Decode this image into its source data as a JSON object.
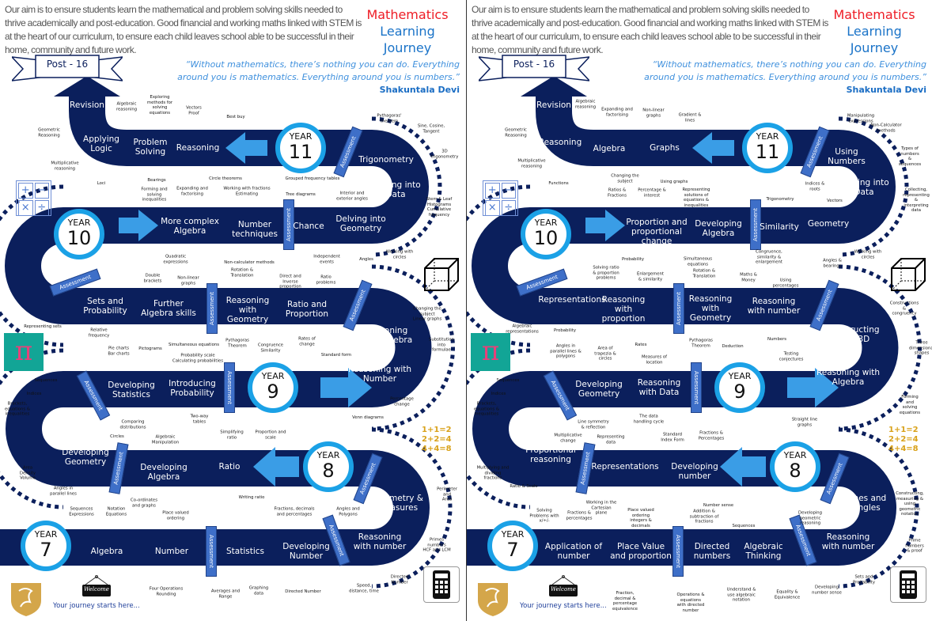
{
  "intro_text": "Our aim is to ensure students learn the mathematical and problem solving skills needed to thrive academically and post-education.  Good financial and working maths linked with STEM is at the heart of our curriculum, to ensure each child leaves school able to be successful in their home, community and future work.",
  "title": {
    "line1": "Mathematics",
    "line2": "Learning",
    "line3": "Journey"
  },
  "quote": {
    "text": "“Without mathematics, there’s nothing you can do. Everything around you is mathematics. Everything around you is numbers.”",
    "author": "Shakuntala Devi"
  },
  "banner": "Post - 16",
  "year_label": "YEAR",
  "years": [
    "11",
    "10",
    "9",
    "8",
    "7"
  ],
  "assessment_label": "Assessment",
  "ops_symbols": [
    "+",
    "−",
    "×",
    "÷"
  ],
  "pi_symbol": "π",
  "sums": [
    "1+1=2",
    "2+2=4",
    "4+4=8"
  ],
  "welcome_sign": "Welcome",
  "journey_start": "Your journey starts here...",
  "colors": {
    "road": "#0b1f5c",
    "accent": "#1ba1e6",
    "arrow": "#3a9de6",
    "assessment": "#3e6fc8",
    "title_red": "#ee1c25",
    "title_blue": "#1a73c8",
    "pi_bg": "#12a596",
    "shield": "#d4a64a"
  },
  "icons": [
    "post-16-banner",
    "operations-icon",
    "cube-icon",
    "pi-icon",
    "sums-icon",
    "calculator-icon",
    "school-shield-logo",
    "welcome-sign-icon"
  ],
  "panels": [
    {
      "topics": [
        "Revision",
        "Applying\nLogic",
        "Problem\nSolving",
        "Reasoning",
        "Trigonometry",
        "Delving into\nData",
        "More complex\nAlgebra",
        "Number\ntechniques",
        "Chance",
        "Delving into\nGeometry",
        "Sets and\nProbability",
        "Further\nAlgebra skills",
        "Reasoning\nwith\nGeometry",
        "Ratio and\nProportion",
        "Reasoning\nwith Algebra",
        "Reasoning with\nNumber",
        "Developing\nStatistics",
        "Introducing\nProbability",
        "Algebraic\ntechniques",
        "Developing\nGeometry",
        "Developing\nAlgebra",
        "Ratio",
        "Geometry &\nMeasures",
        "Reasoning\nwith number",
        "Algebra",
        "Number",
        "Statistics",
        "Developing\nNumber"
      ],
      "subtopics": [
        "Algebraic\nreasoning",
        "Exploring\nmethods for\nsolving\nequations",
        "Vectors\nProof",
        "Best buy",
        "Pythagoras'\ntheorem",
        "Sine, Cosine,\nTangent",
        "3D\ntrigonometry",
        "Geometric\nReasoning",
        "Multiplicative\nreasoning",
        "Loci",
        "Bearings",
        "Forming and\nsolving\ninequalities",
        "Expanding and\nfactorising",
        "Circle theorems",
        "Working with fractions\nEstimating",
        "Grouped frequency tables",
        "Tree diagrams",
        "Interior and\nexterior angles",
        "Stem & Leaf\nHistograms\nCumulative\nfrequency",
        "Quadratic\nexpressions",
        "Non-calculator methods",
        "Independent\nevents",
        "Angles",
        "Working with\ncircles",
        "Double\nbrackets",
        "Non-linear\ngraphs",
        "Rotation &\nTranslation",
        "Direct and\nInverse\nproportion",
        "Ratio\nproblems",
        "Changing the\nsubject\nLinear graphs",
        "Representing sets",
        "Relative\nfrequency",
        "Substitution\ninto formulae",
        "Simultaneous equations",
        "Pythagoras\nTheorem",
        "Congruence\nSimilarity",
        "Rates of\nchange",
        "Standard form",
        "Pie charts\nBar charts",
        "Pictograms",
        "Probability scale\nCalculating probabilities",
        "Sequences",
        "Indices",
        "Brackets,\nequations &\ninequalities",
        "Percentage\nchange",
        "Venn diagrams",
        "Two-way\ntables",
        "Comparing\ndistributions",
        "Circles",
        "Algebraic\nManipulation",
        "Simplifying\nratio",
        "Proportion and\nscale",
        "Area\nDensity\nVolume",
        "Angles in\nparallel lines",
        "Co-ordinates\nand graphs",
        "Writing ratio",
        "Perimeter and\nArea",
        "Sequences\nExpressions",
        "Notation\nEquations",
        "Place valued\nordering",
        "Fractions, decimals\nand percentages",
        "Angles and\nPolygons",
        "Primes numbers\nHCF and LCM",
        "Directed\nNumber",
        "Speed,\ndistance, time",
        "Four Operations\nRounding",
        "Averages and\nRange",
        "Graphing\ndata",
        "Directed Number"
      ]
    },
    {
      "topics": [
        "Revision",
        "Reasoning",
        "Algebra",
        "Graphs",
        "Using\nNumbers",
        "Delving into\nData",
        "Proportion and\nproportional\nchange",
        "Developing\nAlgebra",
        "Similarity",
        "Geometry",
        "Representations",
        "Reasoning\nwith\nproportion",
        "Reasoning\nwith\nGeometry",
        "Reasoning\nwith number",
        "Constructing\nin 2&3D",
        "Reasoning with\nAlgebra",
        "Developing\nGeometry",
        "Reasoning\nwith Data",
        "Algebraic\ntechniques",
        "Proportional\nreasoning",
        "Representations",
        "Developing\nnumber",
        "Lines and\nAngles",
        "Reasoning\nwith number",
        "Application of\nnumber",
        "Place Value\nand proportion",
        "Directed\nnumbers",
        "Algebraic\nThinking"
      ],
      "subtopics": [
        "Algebraic\nreasoning",
        "Expanding and\nfactorising",
        "Non-linear\ngraphs",
        "Gradient &\nlines",
        "Manipulating\nexpressions",
        "Non-Calculator\nmethods",
        "Types of\nnumbers &\nsequences",
        "Geometric\nReasoning",
        "Multiplicative\nreasoning",
        "Functions",
        "Changing the\nsubject",
        "Using graphs",
        "Ratios &\nFractions",
        "Percentage &\ninterest",
        "Representing\nsolutions of\nequations &\ninequalities",
        "Trigonometry",
        "Indices &\nroots",
        "Vectors",
        "Collecting,\nrepresenting\n&\ninterpreting\ndata",
        "Probability",
        "Simultaneous\nequations",
        "Congruence,\nsimilarity &\nenlargement",
        "Angles &\nbearings",
        "Working with\ncircles",
        "Solving ratio\n& proportion\nproblems",
        "Enlargement\n& similarity",
        "Rotation &\nTranslation",
        "Maths &\nMoney",
        "Using\npercentages",
        "Constructions\n& congruency",
        "Algebraic\nrepresentations",
        "Probability",
        "Rates",
        "Pythagoras\nTheorem",
        "Deduction",
        "Numbers",
        "Three\ndimensional\nshapes",
        "Angles in\nparallel lines &\npolygons",
        "Area of\ntrapezia &\ncircles",
        "Measures of\nlocation",
        "Testing\nconjectures",
        "Sequences",
        "Indices",
        "Brackets,\nequations &\ninequalities",
        "Forming and\nsolving\nequations",
        "Straight line\ngraphs",
        "Line symmetry\n& reflection",
        "The data\nhandling cycle",
        "Multiplicative\nchange",
        "Representing\ndata",
        "Standard\nIndex Form",
        "Fractions &\nPercentages",
        "Multiplying and\ndividing\nfractions",
        "Ratio & Scale",
        "Working in the\nCartesian\nplane",
        "Number sense",
        "Constructing,\nmeasuring &\nusing\ngeometric\nnotation",
        "Solving\nProblems with\nx/÷/-",
        "Fractions &\npercentages",
        "Place valued\nordering\nintegers &\ndecimals",
        "Addition &\nsubtraction of\nfractions",
        "Sequences",
        "Developing\ngeometric\nreasoning",
        "Prime numbers\n& proof",
        "Sets and\nProbability",
        "Developing\nnumber sense",
        "Fraction,\ndecimal &\npercentage\nequivalence",
        "Operations &\nequations\nwith directed\nnumber",
        "Understand &\nuse algebraic\nnotation",
        "Equality &\nEquivalence"
      ]
    }
  ]
}
